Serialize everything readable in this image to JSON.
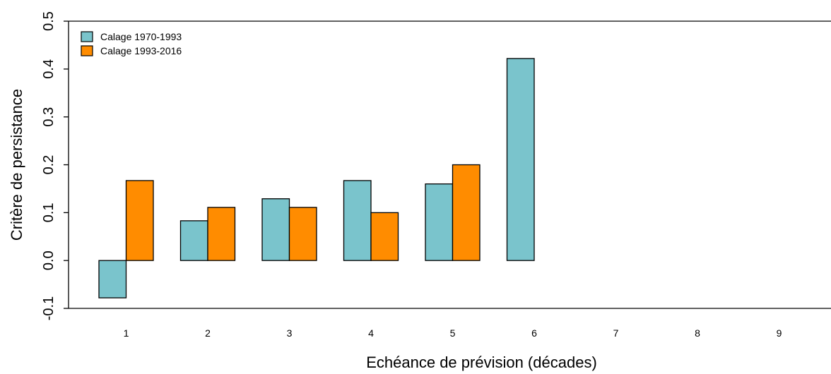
{
  "chart_data": {
    "type": "bar",
    "categories": [
      "1",
      "2",
      "3",
      "4",
      "5",
      "6",
      "7",
      "8",
      "9"
    ],
    "series": [
      {
        "name": "Calage 1970-1993",
        "color": "#7AC4CC",
        "values": [
          -0.078,
          0.083,
          0.129,
          0.167,
          0.16,
          0.422,
          null,
          null,
          null
        ]
      },
      {
        "name": "Calage 1993-2016",
        "color": "#FF8C00",
        "values": [
          0.167,
          0.111,
          0.111,
          0.1,
          0.2,
          null,
          null,
          null,
          null
        ]
      }
    ],
    "xlabel": "Echéance de prévision (décades)",
    "ylabel": "Critère de persistance",
    "ylim": [
      -0.1,
      0.5
    ],
    "yticks": [
      "-0.1",
      "0.0",
      "0.1",
      "0.2",
      "0.3",
      "0.4",
      "0.5"
    ],
    "grid": false,
    "legend_position": "top-left"
  }
}
